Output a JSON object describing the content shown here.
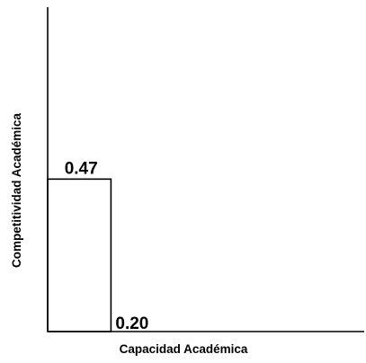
{
  "chart_data": {
    "type": "bar",
    "xlabel": "Capacidad Académica",
    "ylabel": "Competitividad Académica",
    "bars": [
      {
        "x": 0.2,
        "y": 0.47,
        "x_label": "0.20",
        "y_label": "0.47"
      }
    ],
    "xlim": [
      0,
      1
    ],
    "ylim": [
      0,
      1
    ],
    "grid": false,
    "legend": "none",
    "colors": {
      "axis": "#000000",
      "bar_stroke": "#000000",
      "bar_fill": "none",
      "background": "#ffffff"
    }
  }
}
